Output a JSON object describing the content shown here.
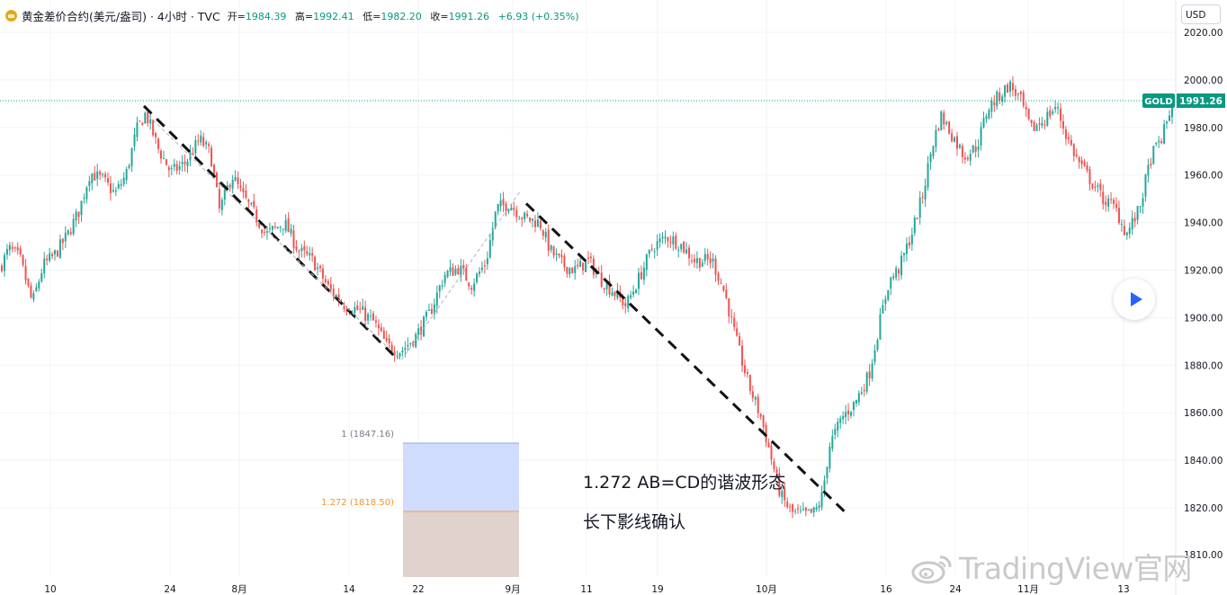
{
  "header": {
    "symbol": "黄金差价合约(美元/盎司)",
    "interval": "4小时",
    "source": "TVC",
    "open_label": "开=",
    "open": "1984.39",
    "high_label": "高=",
    "high": "1992.41",
    "low_label": "低=",
    "low": "1982.20",
    "close_label": "收=",
    "close": "1991.26",
    "change": "+6.93 (+0.35%)"
  },
  "currency_button": "USD",
  "price_tag": {
    "symbol": "GOLD",
    "value": "1991.26",
    "color": "#089981"
  },
  "fib": {
    "level1_label": "1 (1847.16)",
    "level2_label": "1.272 (1818.50)",
    "level1": 1847.16,
    "level2": 1818.5
  },
  "annotations": {
    "line1": "1.272 AB=CD的谐波形态",
    "line2": "长下影线确认"
  },
  "watermark": "TradingView官网",
  "colors": {
    "up": "#26a69a",
    "down": "#ef5350",
    "accent": "#089981",
    "fib_upper": "#cfdcfd",
    "fib_lower": "#e0d2cc"
  },
  "chart_data": {
    "type": "candlestick",
    "ylim": [
      1803,
      2027
    ],
    "yticks": [
      "2020.00",
      "2000.00",
      "1980.00",
      "1960.00",
      "1940.00",
      "1920.00",
      "1900.00",
      "1880.00",
      "1860.00",
      "1840.00",
      "1820.00",
      "1810.00"
    ],
    "xticks": [
      "10",
      "24",
      "8月",
      "14",
      "22",
      "9月",
      "11",
      "19",
      "10月",
      "16",
      "24",
      "11月",
      "13"
    ],
    "last_price": 1991.26,
    "path": [
      [
        0,
        1921
      ],
      [
        10,
        1929
      ],
      [
        22,
        1925
      ],
      [
        36,
        1906
      ],
      [
        48,
        1922
      ],
      [
        60,
        1926
      ],
      [
        74,
        1934
      ],
      [
        88,
        1945
      ],
      [
        100,
        1961
      ],
      [
        114,
        1958
      ],
      [
        128,
        1952
      ],
      [
        140,
        1960
      ],
      [
        152,
        1979
      ],
      [
        162,
        1986
      ],
      [
        176,
        1971
      ],
      [
        190,
        1961
      ],
      [
        206,
        1965
      ],
      [
        222,
        1975
      ],
      [
        234,
        1969
      ],
      [
        244,
        1945
      ],
      [
        258,
        1960
      ],
      [
        270,
        1951
      ],
      [
        282,
        1944
      ],
      [
        296,
        1935
      ],
      [
        316,
        1940
      ],
      [
        332,
        1928
      ],
      [
        348,
        1924
      ],
      [
        366,
        1912
      ],
      [
        384,
        1905
      ],
      [
        400,
        1903
      ],
      [
        416,
        1898
      ],
      [
        430,
        1888
      ],
      [
        446,
        1886
      ],
      [
        462,
        1892
      ],
      [
        478,
        1902
      ],
      [
        494,
        1918
      ],
      [
        510,
        1921
      ],
      [
        524,
        1914
      ],
      [
        540,
        1923
      ],
      [
        552,
        1946
      ],
      [
        566,
        1948
      ],
      [
        582,
        1942
      ],
      [
        600,
        1940
      ],
      [
        612,
        1928
      ],
      [
        626,
        1922
      ],
      [
        640,
        1920
      ],
      [
        654,
        1924
      ],
      [
        668,
        1916
      ],
      [
        682,
        1911
      ],
      [
        696,
        1905
      ],
      [
        712,
        1918
      ],
      [
        726,
        1930
      ],
      [
        742,
        1934
      ],
      [
        756,
        1931
      ],
      [
        772,
        1924
      ],
      [
        792,
        1924
      ],
      [
        806,
        1910
      ],
      [
        818,
        1891
      ],
      [
        832,
        1872
      ],
      [
        846,
        1858
      ],
      [
        856,
        1843
      ],
      [
        868,
        1825
      ],
      [
        880,
        1818
      ],
      [
        894,
        1817
      ],
      [
        906,
        1818
      ],
      [
        914,
        1825
      ],
      [
        922,
        1846
      ],
      [
        936,
        1858
      ],
      [
        950,
        1864
      ],
      [
        966,
        1876
      ],
      [
        978,
        1898
      ],
      [
        988,
        1915
      ],
      [
        1000,
        1921
      ],
      [
        1014,
        1936
      ],
      [
        1026,
        1952
      ],
      [
        1036,
        1972
      ],
      [
        1046,
        1985
      ],
      [
        1058,
        1977
      ],
      [
        1072,
        1968
      ],
      [
        1086,
        1972
      ],
      [
        1098,
        1988
      ],
      [
        1110,
        1993
      ],
      [
        1122,
        1998
      ],
      [
        1134,
        1992
      ],
      [
        1146,
        1979
      ],
      [
        1160,
        1983
      ],
      [
        1174,
        1989
      ],
      [
        1186,
        1976
      ],
      [
        1198,
        1966
      ],
      [
        1212,
        1958
      ],
      [
        1226,
        1950
      ],
      [
        1240,
        1946
      ],
      [
        1252,
        1935
      ],
      [
        1266,
        1945
      ],
      [
        1280,
        1968
      ],
      [
        1292,
        1976
      ],
      [
        1304,
        1991
      ]
    ],
    "drawings": {
      "dashed_lines": [
        [
          [
            160,
            1989
          ],
          [
            438,
            1884
          ]
        ],
        [
          [
            585,
            1948
          ],
          [
            940,
            1818
          ]
        ]
      ],
      "thin_projection": [
        [
          [
            165,
            1985
          ],
          [
            446,
            1882
          ],
          [
            578,
            1953
          ]
        ]
      ]
    }
  }
}
